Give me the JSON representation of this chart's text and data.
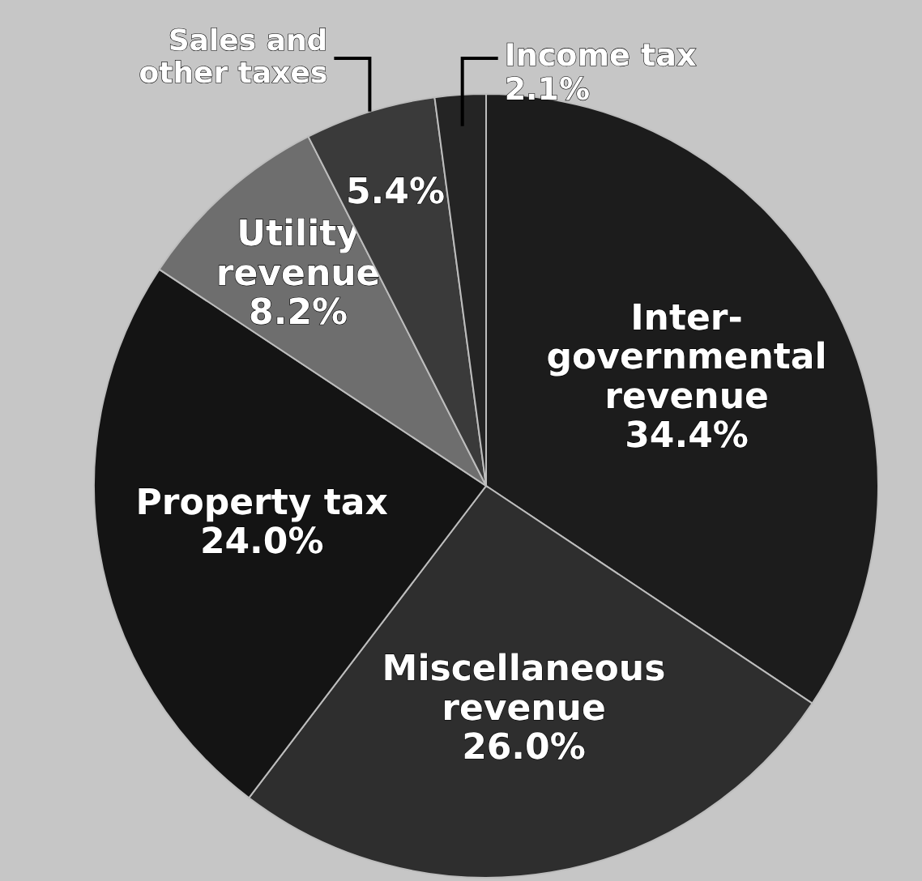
{
  "chart_data": {
    "type": "pie",
    "categories": [
      "Inter-\ngovernmental\nrevenue",
      "Miscellaneous\nrevenue",
      "Property tax",
      "Utility\nrevenue",
      "Sales and\nother taxes",
      "Income tax"
    ],
    "values": [
      34.4,
      26.0,
      24.0,
      8.2,
      5.4,
      2.1
    ],
    "colors": [
      "#1c1c1c",
      "#2e2e2e",
      "#141414",
      "#6e6e6e",
      "#3a3a3a",
      "#242424"
    ],
    "data_labels": true,
    "value_labels": [
      "34.4%",
      "26.0%",
      "24.0%",
      "8.2%",
      "5.4%",
      "2.1%"
    ]
  }
}
